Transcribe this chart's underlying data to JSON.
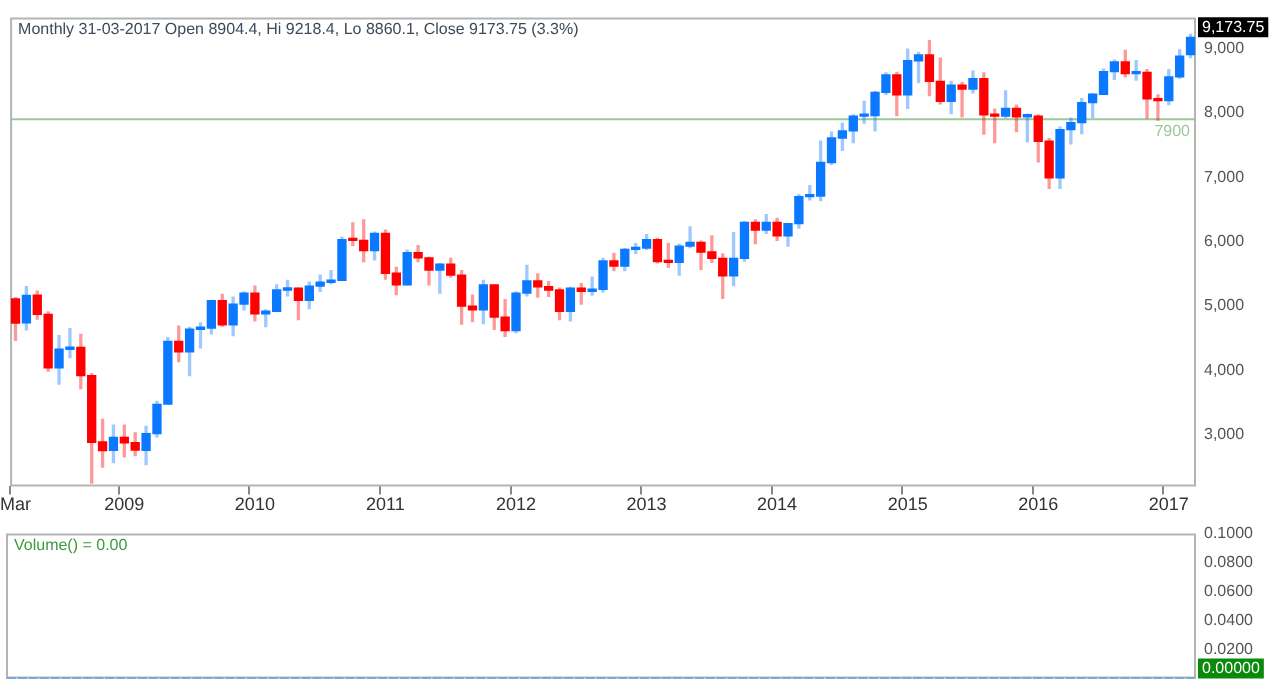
{
  "chart_data": [
    {
      "type": "candlestick",
      "title": "Monthly 31-03-2017 Open 8904.4, Hi 9218.4, Lo 8860.1, Close 9173.75 (3.3%)",
      "categories": [
        "Mar",
        null,
        null,
        null,
        null,
        null,
        null,
        null,
        null,
        null,
        "2009",
        null,
        null,
        null,
        null,
        null,
        null,
        null,
        null,
        null,
        null,
        null,
        "2010",
        null,
        null,
        null,
        null,
        null,
        null,
        null,
        null,
        null,
        null,
        null,
        "2011",
        null,
        null,
        null,
        null,
        null,
        null,
        null,
        null,
        null,
        null,
        null,
        "2012",
        null,
        null,
        null,
        null,
        null,
        null,
        null,
        null,
        null,
        null,
        null,
        "2013",
        null,
        null,
        null,
        null,
        null,
        null,
        null,
        null,
        null,
        null,
        null,
        "2014",
        null,
        null,
        null,
        null,
        null,
        null,
        null,
        null,
        null,
        null,
        null,
        "2015",
        null,
        null,
        null,
        null,
        null,
        null,
        null,
        null,
        null,
        null,
        null,
        "2016",
        null,
        null,
        null,
        null,
        null,
        null,
        null,
        null,
        null,
        null,
        null,
        "2017",
        null,
        null
      ],
      "ohlc": [
        [
          5110,
          5130,
          4470,
          4735
        ],
        [
          4740,
          5300,
          4630,
          5165
        ],
        [
          5170,
          5230,
          4800,
          4870
        ],
        [
          4870,
          4910,
          3990,
          4040
        ],
        [
          4040,
          4540,
          3790,
          4330
        ],
        [
          4330,
          4650,
          4200,
          4360
        ],
        [
          4360,
          4560,
          3720,
          3920
        ],
        [
          3920,
          3950,
          2250,
          2885
        ],
        [
          2890,
          3240,
          2500,
          2755
        ],
        [
          2760,
          3150,
          2570,
          2960
        ],
        [
          2960,
          3150,
          2660,
          2875
        ],
        [
          2880,
          3030,
          2680,
          2765
        ],
        [
          2760,
          3130,
          2540,
          3020
        ],
        [
          3020,
          3520,
          2970,
          3475
        ],
        [
          3480,
          4510,
          3480,
          4450
        ],
        [
          4450,
          4690,
          4140,
          4290
        ],
        [
          4290,
          4670,
          3920,
          4640
        ],
        [
          4640,
          4740,
          4350,
          4660
        ],
        [
          4660,
          5090,
          4570,
          5085
        ],
        [
          5085,
          5180,
          4690,
          4710
        ],
        [
          4710,
          5140,
          4540,
          5030
        ],
        [
          5030,
          5220,
          4940,
          5200
        ],
        [
          5200,
          5310,
          4770,
          4880
        ],
        [
          4880,
          4940,
          4680,
          4920
        ],
        [
          4920,
          5330,
          4920,
          5250
        ],
        [
          5250,
          5400,
          5160,
          5280
        ],
        [
          5280,
          5280,
          4790,
          5090
        ],
        [
          5090,
          5370,
          4960,
          5310
        ],
        [
          5310,
          5480,
          5230,
          5370
        ],
        [
          5370,
          5550,
          5350,
          5400
        ],
        [
          5400,
          6070,
          5400,
          6030
        ],
        [
          6030,
          6290,
          5940,
          6020
        ],
        [
          6020,
          6340,
          5690,
          5860
        ],
        [
          5860,
          6150,
          5720,
          6130
        ],
        [
          6130,
          6180,
          5420,
          5510
        ],
        [
          5510,
          5600,
          5180,
          5330
        ],
        [
          5330,
          5870,
          5330,
          5830
        ],
        [
          5830,
          5940,
          5690,
          5750
        ],
        [
          5750,
          5760,
          5330,
          5560
        ],
        [
          5560,
          5660,
          5200,
          5650
        ],
        [
          5650,
          5740,
          5450,
          5480
        ],
        [
          5480,
          5550,
          4720,
          5000
        ],
        [
          5000,
          5170,
          4760,
          4940
        ],
        [
          4940,
          5400,
          4730,
          5330
        ],
        [
          5330,
          5330,
          4640,
          4830
        ],
        [
          4830,
          5100,
          4530,
          4620
        ],
        [
          4620,
          5220,
          4590,
          5200
        ],
        [
          5200,
          5630,
          5160,
          5390
        ],
        [
          5390,
          5500,
          5140,
          5300
        ],
        [
          5300,
          5380,
          5150,
          5250
        ],
        [
          5250,
          5280,
          4790,
          4920
        ],
        [
          4920,
          5290,
          4770,
          5280
        ],
        [
          5280,
          5350,
          5030,
          5230
        ],
        [
          5230,
          5450,
          5170,
          5260
        ],
        [
          5260,
          5740,
          5220,
          5700
        ],
        [
          5700,
          5820,
          5550,
          5620
        ],
        [
          5620,
          5890,
          5550,
          5880
        ],
        [
          5880,
          5970,
          5820,
          5900
        ],
        [
          5900,
          6110,
          5880,
          6030
        ],
        [
          6030,
          6050,
          5670,
          5690
        ],
        [
          5690,
          5970,
          5600,
          5680
        ],
        [
          5680,
          5960,
          5480,
          5930
        ],
        [
          5930,
          6230,
          5910,
          5990
        ],
        [
          5990,
          6010,
          5570,
          5840
        ],
        [
          5840,
          6090,
          5680,
          5740
        ],
        [
          5740,
          5810,
          5120,
          5470
        ],
        [
          5470,
          6140,
          5320,
          5740
        ],
        [
          5740,
          6310,
          5700,
          6300
        ],
        [
          6300,
          6340,
          5970,
          6180
        ],
        [
          6180,
          6420,
          6130,
          6300
        ],
        [
          6300,
          6360,
          6020,
          6090
        ],
        [
          6090,
          6280,
          5930,
          6280
        ],
        [
          6280,
          6730,
          6210,
          6700
        ],
        [
          6700,
          6870,
          6650,
          6710
        ],
        [
          6710,
          7560,
          6640,
          7230
        ],
        [
          7230,
          7700,
          7200,
          7610
        ],
        [
          7610,
          7840,
          7420,
          7720
        ],
        [
          7720,
          7970,
          7540,
          7950
        ],
        [
          7950,
          8180,
          7840,
          7960
        ],
        [
          7960,
          8330,
          7720,
          8320
        ],
        [
          8320,
          8620,
          8290,
          8590
        ],
        [
          8590,
          8630,
          7960,
          8280
        ],
        [
          8280,
          8990,
          8070,
          8810
        ],
        [
          8810,
          8940,
          8470,
          8900
        ],
        [
          8900,
          9120,
          8270,
          8490
        ],
        [
          8490,
          8850,
          8140,
          8180
        ],
        [
          8180,
          8490,
          7990,
          8430
        ],
        [
          8430,
          8470,
          7940,
          8370
        ],
        [
          8370,
          8650,
          8310,
          8530
        ],
        [
          8530,
          8620,
          7670,
          7970
        ],
        [
          7970,
          8060,
          7540,
          7950
        ],
        [
          7950,
          8340,
          7930,
          8070
        ],
        [
          8070,
          8120,
          7710,
          7940
        ],
        [
          7940,
          7980,
          7550,
          7950
        ],
        [
          7950,
          7970,
          7240,
          7560
        ],
        [
          7560,
          7600,
          6830,
          6990
        ],
        [
          6990,
          7780,
          6830,
          7740
        ],
        [
          7740,
          7920,
          7520,
          7850
        ],
        [
          7850,
          8220,
          7680,
          8160
        ],
        [
          8160,
          8300,
          7930,
          8290
        ],
        [
          8290,
          8680,
          8290,
          8640
        ],
        [
          8640,
          8820,
          8520,
          8790
        ],
        [
          8790,
          8970,
          8560,
          8610
        ],
        [
          8610,
          8810,
          8510,
          8630
        ],
        [
          8630,
          8670,
          7920,
          8220
        ],
        [
          8220,
          8280,
          7890,
          8190
        ],
        [
          8190,
          8670,
          8130,
          8560
        ],
        [
          8560,
          8980,
          8540,
          8880
        ],
        [
          8904.4,
          9218.4,
          8860.1,
          9173.75
        ]
      ],
      "colors": [
        "#ff0000",
        "#0a78ff",
        "#ff0000",
        "#ff0000",
        "#0a78ff",
        "#0a78ff",
        "#ff0000",
        "#ff0000",
        "#ff0000",
        "#0a78ff",
        "#ff0000",
        "#ff0000",
        "#0a78ff",
        "#0a78ff",
        "#0a78ff",
        "#ff0000",
        "#0a78ff",
        "#0a78ff",
        "#0a78ff",
        "#ff0000",
        "#0a78ff",
        "#0a78ff",
        "#ff0000",
        "#0a78ff",
        "#0a78ff",
        "#0a78ff",
        "#ff0000",
        "#0a78ff",
        "#0a78ff",
        "#0a78ff",
        "#0a78ff",
        "#ff0000",
        "#ff0000",
        "#0a78ff",
        "#ff0000",
        "#ff0000",
        "#0a78ff",
        "#ff0000",
        "#ff0000",
        "#0a78ff",
        "#ff0000",
        "#ff0000",
        "#ff0000",
        "#0a78ff",
        "#ff0000",
        "#ff0000",
        "#0a78ff",
        "#0a78ff",
        "#ff0000",
        "#ff0000",
        "#ff0000",
        "#0a78ff",
        "#ff0000",
        "#0a78ff",
        "#0a78ff",
        "#ff0000",
        "#0a78ff",
        "#0a78ff",
        "#0a78ff",
        "#ff0000",
        "#ff0000",
        "#0a78ff",
        "#0a78ff",
        "#ff0000",
        "#ff0000",
        "#ff0000",
        "#0a78ff",
        "#0a78ff",
        "#ff0000",
        "#0a78ff",
        "#ff0000",
        "#0a78ff",
        "#0a78ff",
        "#0a78ff",
        "#0a78ff",
        "#0a78ff",
        "#0a78ff",
        "#0a78ff",
        "#0a78ff",
        "#0a78ff",
        "#0a78ff",
        "#ff0000",
        "#0a78ff",
        "#0a78ff",
        "#ff0000",
        "#ff0000",
        "#0a78ff",
        "#ff0000",
        "#0a78ff",
        "#ff0000",
        "#ff0000",
        "#0a78ff",
        "#ff0000",
        "#0a78ff",
        "#ff0000",
        "#ff0000",
        "#0a78ff",
        "#0a78ff",
        "#0a78ff",
        "#0a78ff",
        "#0a78ff",
        "#0a78ff",
        "#ff0000",
        "#0a78ff",
        "#ff0000",
        "#ff0000",
        "#0a78ff",
        "#0a78ff",
        "#0a78ff"
      ],
      "ylim": [
        2200,
        9480
      ],
      "yticks": [
        {
          "value": 3000,
          "label": "3,000"
        },
        {
          "value": 4000,
          "label": "4,000"
        },
        {
          "value": 5000,
          "label": "5,000"
        },
        {
          "value": 6000,
          "label": "6,000"
        },
        {
          "value": 7000,
          "label": "7,000"
        },
        {
          "value": 8000,
          "label": "8,000"
        },
        {
          "value": 9000,
          "label": "9,000"
        }
      ],
      "ref_lines": [
        {
          "axis": "y",
          "value": 7900,
          "label": "7900",
          "color": "#9cc79c"
        }
      ],
      "annotations": [
        "9,173.75"
      ],
      "grid": false,
      "legend": false
    },
    {
      "type": "bar",
      "title": "Volume() = 0.00",
      "color": "#0a78ff",
      "categories": [
        null,
        null,
        null,
        null,
        null,
        null,
        null,
        null,
        null,
        null,
        null,
        null,
        null,
        null,
        null,
        null,
        null,
        null,
        null,
        null,
        null,
        null,
        null,
        null,
        null,
        null,
        null,
        null,
        null,
        null,
        null,
        null,
        null,
        null,
        null,
        null,
        null,
        null,
        null,
        null,
        null,
        null,
        null,
        null,
        null,
        null,
        null,
        null,
        null,
        null,
        null,
        null,
        null,
        null,
        null,
        null,
        null,
        null,
        null,
        null,
        null,
        null,
        null,
        null,
        null,
        null,
        null,
        null,
        null,
        null,
        null,
        null,
        null,
        null,
        null,
        null,
        null,
        null,
        null,
        null,
        null,
        null,
        null,
        null,
        null,
        null,
        null,
        null,
        null,
        null,
        null,
        null,
        null,
        null,
        null,
        null,
        null,
        null,
        null,
        null,
        null,
        null,
        null,
        null,
        null,
        null,
        null,
        null,
        null
      ],
      "values": [
        0,
        0,
        0,
        0,
        0,
        0,
        0,
        0,
        0,
        0,
        0,
        0,
        0,
        0,
        0,
        0,
        0,
        0,
        0,
        0,
        0,
        0,
        0,
        0,
        0,
        0,
        0,
        0,
        0,
        0,
        0,
        0,
        0,
        0,
        0,
        0,
        0,
        0,
        0,
        0,
        0,
        0,
        0,
        0,
        0,
        0,
        0,
        0,
        0,
        0,
        0,
        0,
        0,
        0,
        0,
        0,
        0,
        0,
        0,
        0,
        0,
        0,
        0,
        0,
        0,
        0,
        0,
        0,
        0,
        0,
        0,
        0,
        0,
        0,
        0,
        0,
        0,
        0,
        0,
        0,
        0,
        0,
        0,
        0,
        0,
        0,
        0,
        0,
        0,
        0,
        0,
        0,
        0,
        0,
        0,
        0,
        0,
        0,
        0,
        0,
        0,
        0,
        0,
        0,
        0,
        0,
        0,
        0,
        0
      ],
      "ylim": [
        0,
        0.1
      ],
      "yticks": [
        {
          "value": 0.02,
          "label": "0.0200"
        },
        {
          "value": 0.04,
          "label": "0.0400"
        },
        {
          "value": 0.06,
          "label": "0.0600"
        },
        {
          "value": 0.08,
          "label": "0.0800"
        },
        {
          "value": 0.1,
          "label": "0.1000"
        }
      ],
      "annotations": [
        "0.00000"
      ],
      "tick_labels": "y",
      "grid": false,
      "legend": false
    }
  ]
}
